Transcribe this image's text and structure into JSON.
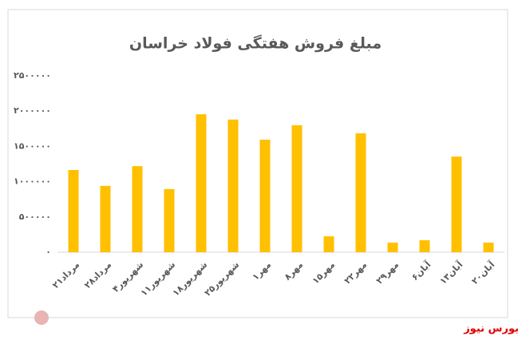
{
  "chart_data": {
    "type": "bar",
    "title": "مبلغ فروش هفتگی فولاد خراسان",
    "categories": [
      "۲۱مرداد",
      "۲۸مرداد",
      "۴شهریور",
      "۱۱شهریور",
      "۱۸شهریور",
      "۲۵شهریور",
      "۱مهر",
      "۸مهر",
      "۱۵مهر",
      "۲۲مهر",
      "۲۹مهر",
      "۶آبان",
      "۱۳آبان",
      "۲۰آبان"
    ],
    "values": [
      1165000,
      940000,
      1220000,
      895000,
      1955000,
      1880000,
      1595000,
      1800000,
      225000,
      1685000,
      135000,
      170000,
      1355000,
      135000
    ],
    "color": "#ffc000",
    "ylim": [
      0,
      2500000
    ],
    "yticks": [
      {
        "value": 0,
        "label": "۰"
      },
      {
        "value": 500000,
        "label": "۵۰۰۰۰۰"
      },
      {
        "value": 1000000,
        "label": "۱۰۰۰۰۰۰"
      },
      {
        "value": 1500000,
        "label": "۱۵۰۰۰۰۰"
      },
      {
        "value": 2000000,
        "label": "۲۰۰۰۰۰۰"
      },
      {
        "value": 2500000,
        "label": "۲۵۰۰۰۰۰"
      }
    ],
    "grid": false
  },
  "watermark": "بورس نیوز"
}
